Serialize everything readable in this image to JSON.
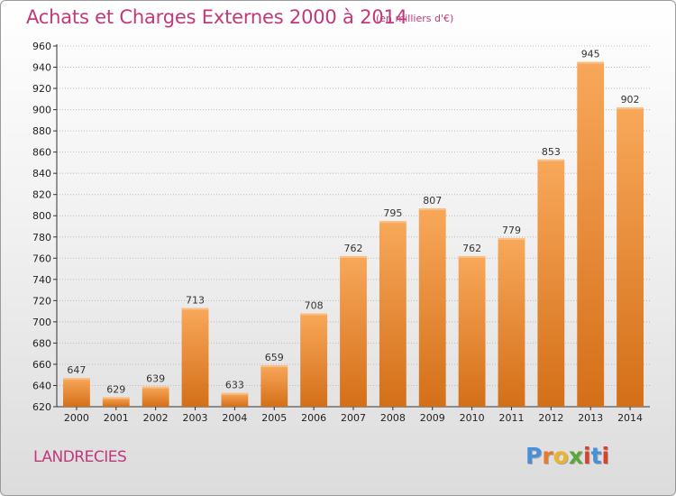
{
  "title": "Achats et Charges Externes 2000 à 2014",
  "unit_note": "(en milliers d'€)",
  "town": "LANDRECIES",
  "logo": {
    "text": "Proxiti",
    "letter_colors": [
      "#4a90d9",
      "#e8792b",
      "#e8b52b",
      "#5aa83c",
      "#d9412b",
      "#4a90d9",
      "#d9412b"
    ]
  },
  "colors": {
    "title": "#c0397a",
    "bar_top": "#f8a85a",
    "bar_bottom": "#d46f18",
    "grid": "#bdbdbd"
  },
  "chart_data": {
    "type": "bar",
    "categories": [
      "2000",
      "2001",
      "2002",
      "2003",
      "2004",
      "2005",
      "2006",
      "2007",
      "2008",
      "2009",
      "2010",
      "2011",
      "2012",
      "2013",
      "2014"
    ],
    "values": [
      647,
      629,
      639,
      713,
      633,
      659,
      708,
      762,
      795,
      807,
      762,
      779,
      853,
      945,
      902
    ],
    "ylim": [
      620,
      960
    ],
    "yticks": [
      620,
      640,
      660,
      680,
      700,
      720,
      740,
      760,
      780,
      800,
      820,
      840,
      860,
      880,
      900,
      920,
      940,
      960
    ],
    "grid": true,
    "data_labels": true
  }
}
